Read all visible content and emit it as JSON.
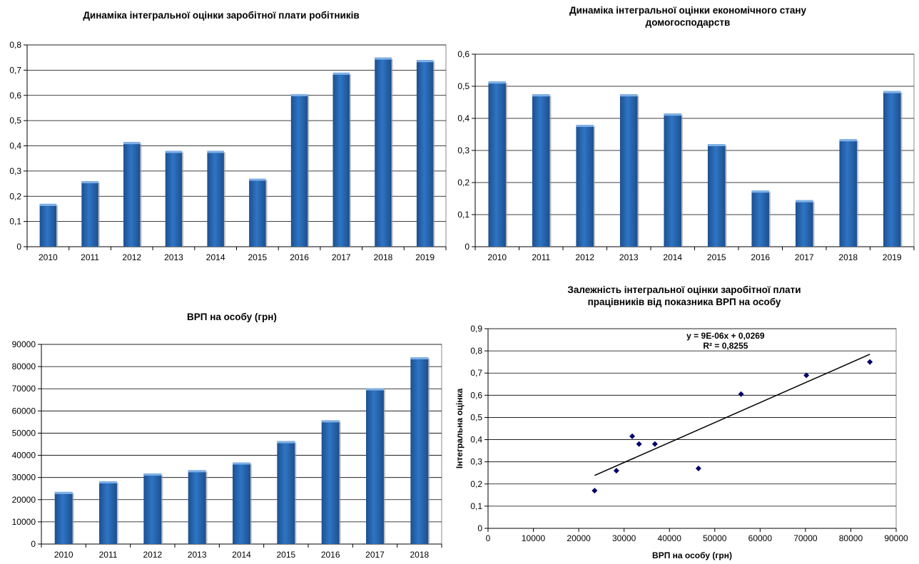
{
  "chart_data": [
    {
      "type": "bar",
      "title": "Динаміка інтегральної оцінки заробітної плати робітників",
      "categories": [
        "2010",
        "2011",
        "2012",
        "2013",
        "2014",
        "2015",
        "2016",
        "2017",
        "2018",
        "2019"
      ],
      "values": [
        0.17,
        0.26,
        0.415,
        0.38,
        0.38,
        0.27,
        0.605,
        0.69,
        0.75,
        0.74
      ],
      "ylim": [
        0,
        0.8
      ],
      "yticks": [
        "0",
        "0,1",
        "0,2",
        "0,3",
        "0,4",
        "0,5",
        "0,6",
        "0,7",
        "0,8"
      ],
      "grid": true,
      "bar_color": "#2e75c4"
    },
    {
      "type": "bar",
      "title": "Динаміка інтегральної оцінки економічного стану домогосподарств",
      "categories": [
        "2010",
        "2011",
        "2012",
        "2013",
        "2014",
        "2015",
        "2016",
        "2017",
        "2018",
        "2019"
      ],
      "values": [
        0.515,
        0.475,
        0.38,
        0.475,
        0.415,
        0.32,
        0.175,
        0.145,
        0.335,
        0.485
      ],
      "ylim": [
        0,
        0.6
      ],
      "yticks": [
        "0",
        "0,1",
        "0,2",
        "0,3",
        "0,4",
        "0,5",
        "0,6"
      ],
      "grid": true,
      "bar_color": "#2e75c4"
    },
    {
      "type": "bar",
      "title": "ВРП на особу (грн)",
      "categories": [
        "2010",
        "2011",
        "2012",
        "2013",
        "2014",
        "2015",
        "2016",
        "2017",
        "2018"
      ],
      "values": [
        23500,
        28300,
        31800,
        33300,
        36800,
        46400,
        55800,
        70200,
        84200
      ],
      "ylim": [
        0,
        90000
      ],
      "yticks": [
        "0",
        "10000",
        "20000",
        "30000",
        "40000",
        "50000",
        "60000",
        "70000",
        "80000",
        "90000"
      ],
      "grid": true,
      "bar_color": "#2e75c4"
    },
    {
      "type": "scatter",
      "title": "Залежність інтегральної оцінки заробітної плати працівників від показника ВРП на особу",
      "xlabel": "ВРП на особу (грн)",
      "ylabel": "Інтегральна оцінка",
      "x": [
        23500,
        28300,
        31800,
        33300,
        36800,
        46400,
        55800,
        70200,
        84200
      ],
      "y": [
        0.17,
        0.26,
        0.415,
        0.38,
        0.38,
        0.27,
        0.605,
        0.69,
        0.75
      ],
      "xlim": [
        0,
        90000
      ],
      "ylim": [
        0,
        0.9
      ],
      "xticks": [
        "0",
        "10000",
        "20000",
        "30000",
        "40000",
        "50000",
        "60000",
        "70000",
        "80000",
        "90000"
      ],
      "yticks": [
        "0",
        "0,1",
        "0,2",
        "0,3",
        "0,4",
        "0,5",
        "0,6",
        "0,7",
        "0,8",
        "0,9"
      ],
      "grid": true,
      "trendline": {
        "slope": 9e-06,
        "intercept": 0.0269,
        "x_from": 23500,
        "x_to": 84200
      },
      "equation": "y = 9E-06x + 0,0269",
      "r_squared": "R² = 0,8255",
      "marker_color": "#00006b"
    }
  ]
}
